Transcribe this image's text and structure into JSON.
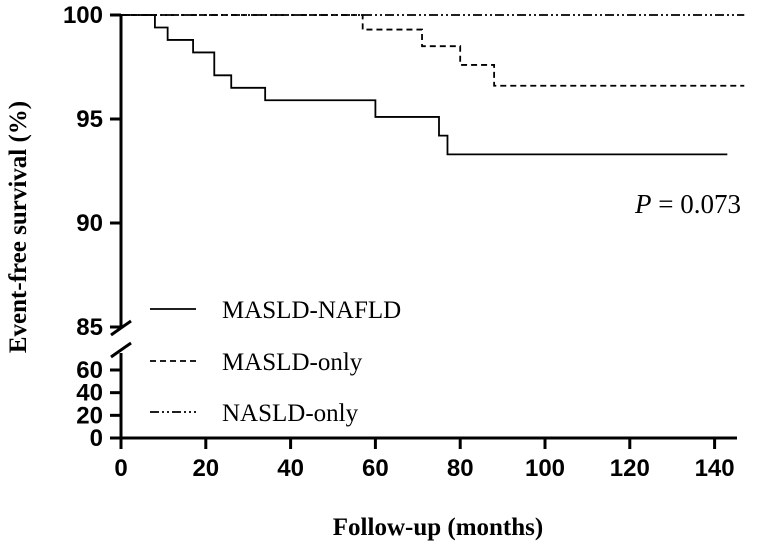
{
  "chart_data": {
    "type": "line",
    "subtype": "kaplan-meier step",
    "xlabel": "Follow-up (months)",
    "ylabel": "Event-free survival (%)",
    "xlim": [
      0,
      145
    ],
    "x_ticks": [
      "0",
      "20",
      "40",
      "60",
      "80",
      "100",
      "120",
      "140"
    ],
    "y_upper_range": [
      85,
      100
    ],
    "y_upper_ticks": [
      "85",
      "90",
      "95",
      "100"
    ],
    "y_lower_range": [
      0,
      60
    ],
    "y_lower_ticks": [
      "0",
      "20",
      "40",
      "60"
    ],
    "axis_break": true,
    "annotation": {
      "prefix": "P",
      "text": " = 0.073"
    },
    "legend_position": "bottom-left",
    "series": [
      {
        "name": "MASLD-NAFLD",
        "style": "solid",
        "points": [
          [
            0,
            100
          ],
          [
            8,
            99.4
          ],
          [
            11,
            98.8
          ],
          [
            17,
            98.2
          ],
          [
            22,
            97.1
          ],
          [
            26,
            96.5
          ],
          [
            34,
            95.9
          ],
          [
            60,
            95.1
          ],
          [
            75,
            94.2
          ],
          [
            77,
            93.3
          ],
          [
            143,
            93.3
          ]
        ]
      },
      {
        "name": "MASLD-only",
        "style": "dashed",
        "points": [
          [
            0,
            100
          ],
          [
            57,
            99.3
          ],
          [
            71,
            98.5
          ],
          [
            80,
            97.6
          ],
          [
            88,
            96.6
          ],
          [
            147,
            96.6
          ]
        ]
      },
      {
        "name": "NASLD-only",
        "style": "dash-dot-dot",
        "points": [
          [
            0,
            100
          ],
          [
            147,
            100
          ]
        ]
      }
    ]
  }
}
